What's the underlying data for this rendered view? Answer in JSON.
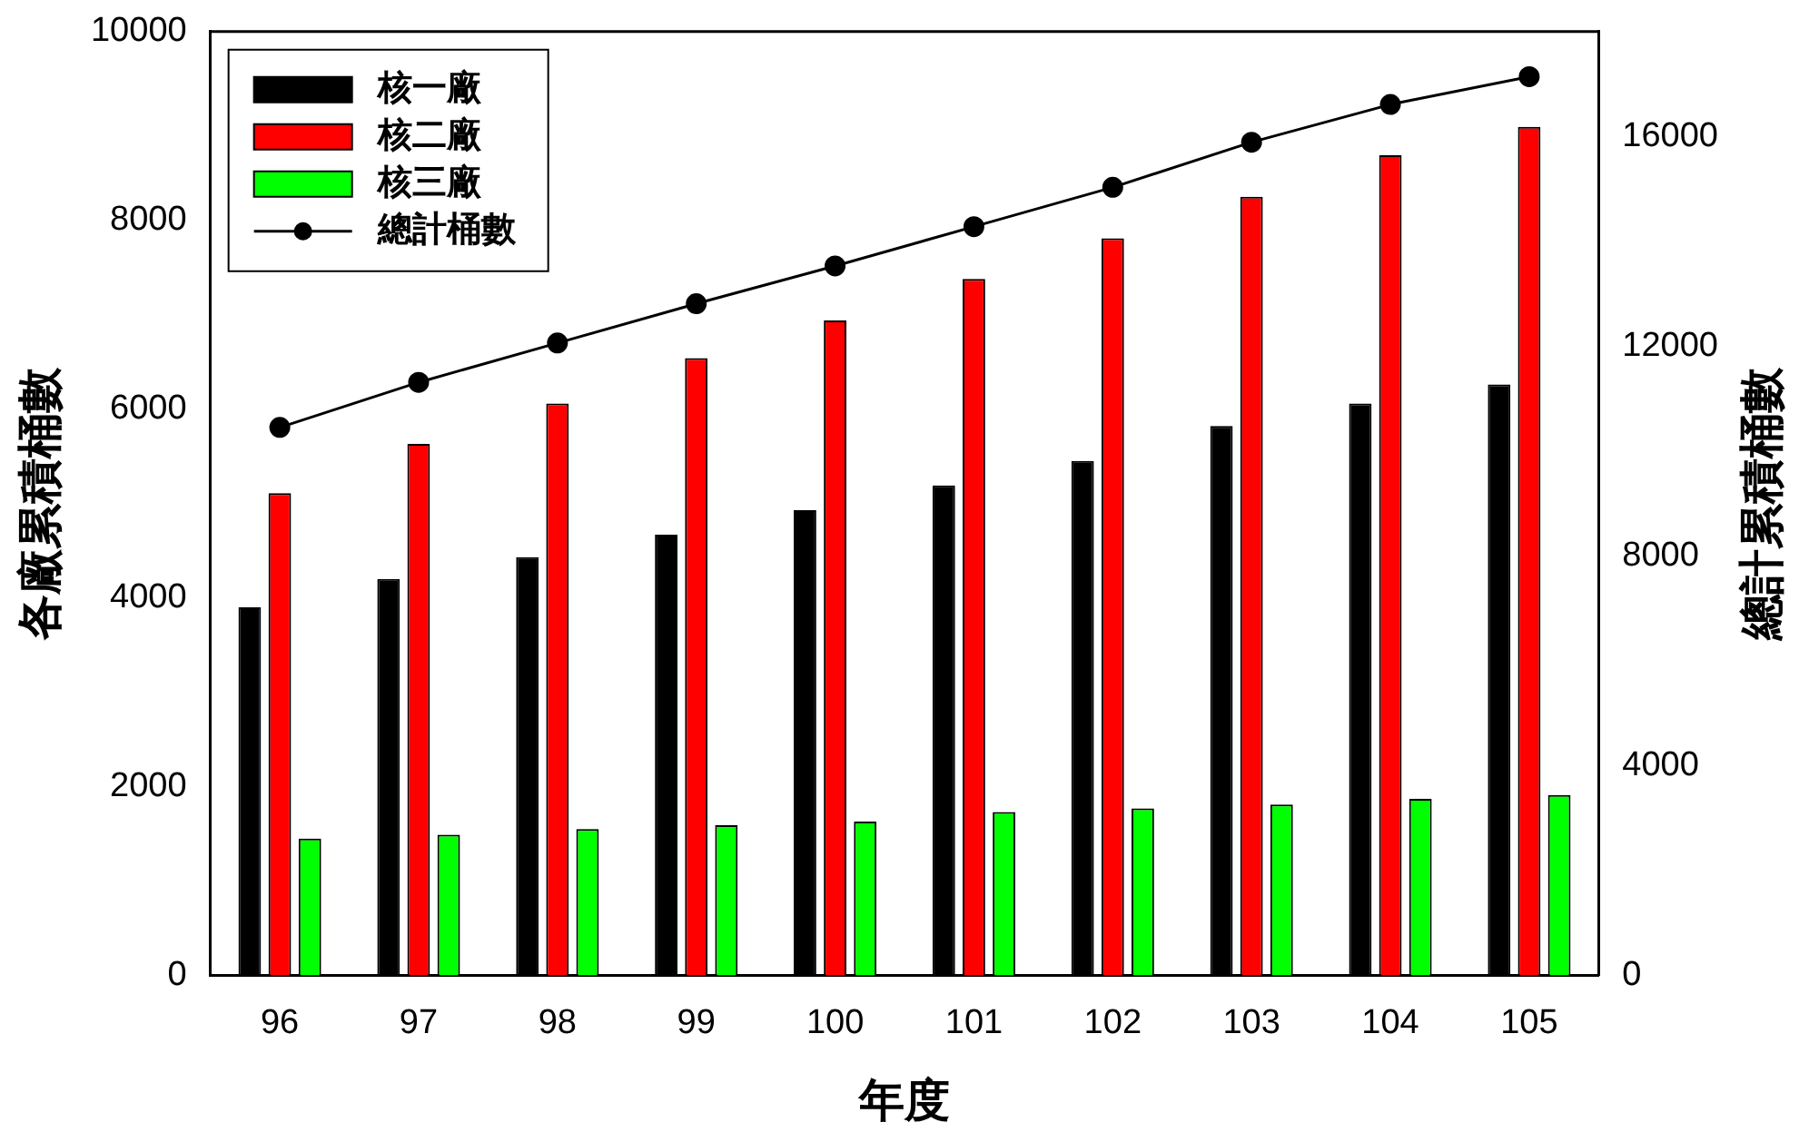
{
  "chart_data": {
    "type": "bar",
    "xlabel": "年度",
    "ylabel": "各廠累積桶數",
    "y2label": "總計累積桶數",
    "categories": [
      "96",
      "97",
      "98",
      "99",
      "100",
      "101",
      "102",
      "103",
      "104",
      "105"
    ],
    "series": [
      {
        "name": "核一廠",
        "color": "#000000",
        "values": [
          3900,
          4200,
          4430,
          4670,
          4930,
          5190,
          5450,
          5820,
          6060,
          6260
        ]
      },
      {
        "name": "核二廠",
        "color": "#ff0000",
        "values": [
          5110,
          5630,
          6060,
          6540,
          6940,
          7380,
          7810,
          8250,
          8690,
          8990
        ]
      },
      {
        "name": "核三廠",
        "color": "#00ff00",
        "values": [
          1450,
          1490,
          1550,
          1590,
          1630,
          1730,
          1770,
          1810,
          1870,
          1910
        ]
      },
      {
        "name": "總計桶數",
        "type": "line",
        "axis": "y2",
        "color": "#000000",
        "marker": "circle",
        "values": [
          10450,
          11310,
          12060,
          12810,
          13530,
          14280,
          15030,
          15890,
          16610,
          17140
        ]
      }
    ],
    "ylim": [
      0,
      10000
    ],
    "yticks": [
      0,
      2000,
      4000,
      6000,
      8000,
      10000
    ],
    "y2lim": [
      0,
      18000
    ],
    "y2ticks": [
      0,
      4000,
      8000,
      12000,
      16000
    ],
    "grid": false,
    "legend": "top left"
  }
}
